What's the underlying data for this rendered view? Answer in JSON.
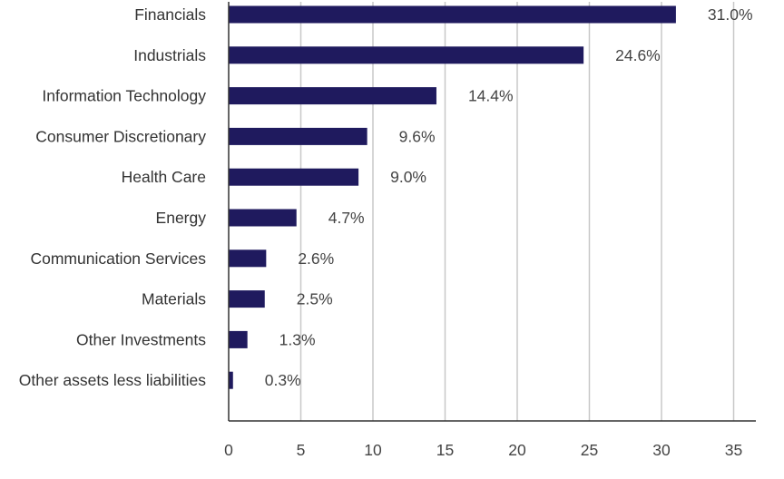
{
  "chart_data": {
    "type": "bar",
    "orientation": "horizontal",
    "title": "",
    "xlabel": "",
    "ylabel": "",
    "categories": [
      "Financials",
      "Industrials",
      "Information Technology",
      "Consumer Discretionary",
      "Health Care",
      "Energy",
      "Communication Services",
      "Materials",
      "Other Investments",
      "Other assets less liabilities"
    ],
    "values": [
      31.0,
      24.6,
      14.4,
      9.6,
      9.0,
      4.7,
      2.6,
      2.5,
      1.3,
      0.3
    ],
    "value_labels": [
      "31.0%",
      "24.6%",
      "14.4%",
      "9.6%",
      "9.0%",
      "4.7%",
      "2.6%",
      "2.5%",
      "1.3%",
      "0.3%"
    ],
    "xlim": [
      0,
      36.5
    ],
    "xticks": [
      0,
      5,
      10,
      15,
      20,
      25,
      30,
      35
    ],
    "xtick_labels": [
      "0",
      "5",
      "10",
      "15",
      "20",
      "25",
      "30",
      "35"
    ],
    "grid": "vertical",
    "legend": "none",
    "colors": {
      "bar": "#1f1a5e",
      "grid": "#c8c8c8",
      "axis": "#333333"
    }
  }
}
